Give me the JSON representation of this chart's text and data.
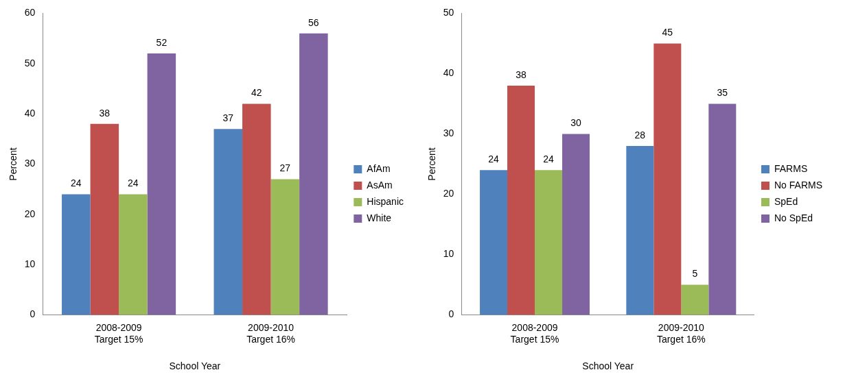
{
  "chart_data": [
    {
      "type": "bar",
      "xlabel": "School Year",
      "ylabel": "Percent",
      "categories": [
        "2008-2009\nTarget 15%",
        "2009-2010\nTarget 16%"
      ],
      "series": [
        {
          "name": "AfAm",
          "color": "#4f81bd",
          "values": [
            24,
            37
          ]
        },
        {
          "name": "AsAm",
          "color": "#c0504d",
          "values": [
            38,
            42
          ]
        },
        {
          "name": "Hispanic",
          "color": "#9bbb59",
          "values": [
            24,
            27
          ]
        },
        {
          "name": "White",
          "color": "#8064a2",
          "values": [
            52,
            56
          ]
        }
      ],
      "ylim": [
        0,
        60
      ],
      "yticks": [
        0,
        10,
        20,
        30,
        40,
        50,
        60
      ],
      "grid": false,
      "legend": "right",
      "data_labels": true
    },
    {
      "type": "bar",
      "xlabel": "School Year",
      "ylabel": "Percent",
      "categories": [
        "2008-2009\nTarget 15%",
        "2009-2010\nTarget 16%"
      ],
      "series": [
        {
          "name": "FARMS",
          "color": "#4f81bd",
          "values": [
            24,
            28
          ]
        },
        {
          "name": "No FARMS",
          "color": "#c0504d",
          "values": [
            38,
            45
          ]
        },
        {
          "name": "SpEd",
          "color": "#9bbb59",
          "values": [
            24,
            5
          ]
        },
        {
          "name": "No SpEd",
          "color": "#8064a2",
          "values": [
            30,
            35
          ]
        }
      ],
      "ylim": [
        0,
        50
      ],
      "yticks": [
        0,
        10,
        20,
        30,
        40,
        50
      ],
      "grid": false,
      "legend": "right",
      "data_labels": true
    }
  ]
}
